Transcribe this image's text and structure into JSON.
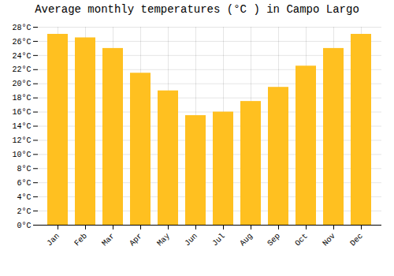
{
  "chart_data": {
    "type": "bar",
    "title": "Average monthly temperatures (°C ) in Campo Largo",
    "categories": [
      "Jan",
      "Feb",
      "Mar",
      "Apr",
      "May",
      "Jun",
      "Jul",
      "Aug",
      "Sep",
      "Oct",
      "Nov",
      "Dec"
    ],
    "values": [
      27.0,
      26.5,
      25.0,
      21.5,
      19.0,
      15.5,
      16.0,
      17.5,
      19.5,
      22.5,
      25.0,
      27.0
    ],
    "color": "#FFC020",
    "ylim": [
      0,
      28
    ],
    "yticks": [
      {
        "value": 0,
        "label": "0°C"
      },
      {
        "value": 2,
        "label": "2°C"
      },
      {
        "value": 4,
        "label": "4°C"
      },
      {
        "value": 6,
        "label": "6°C"
      },
      {
        "value": 8,
        "label": "8°C"
      },
      {
        "value": 10,
        "label": "10°C"
      },
      {
        "value": 12,
        "label": "12°C"
      },
      {
        "value": 14,
        "label": "14°C"
      },
      {
        "value": 16,
        "label": "16°C"
      },
      {
        "value": 18,
        "label": "18°C"
      },
      {
        "value": 20,
        "label": "20°C"
      },
      {
        "value": 22,
        "label": "22°C"
      },
      {
        "value": 24,
        "label": "24°C"
      },
      {
        "value": 26,
        "label": "26°C"
      },
      {
        "value": 28,
        "label": "28°C"
      }
    ],
    "grid": true
  }
}
